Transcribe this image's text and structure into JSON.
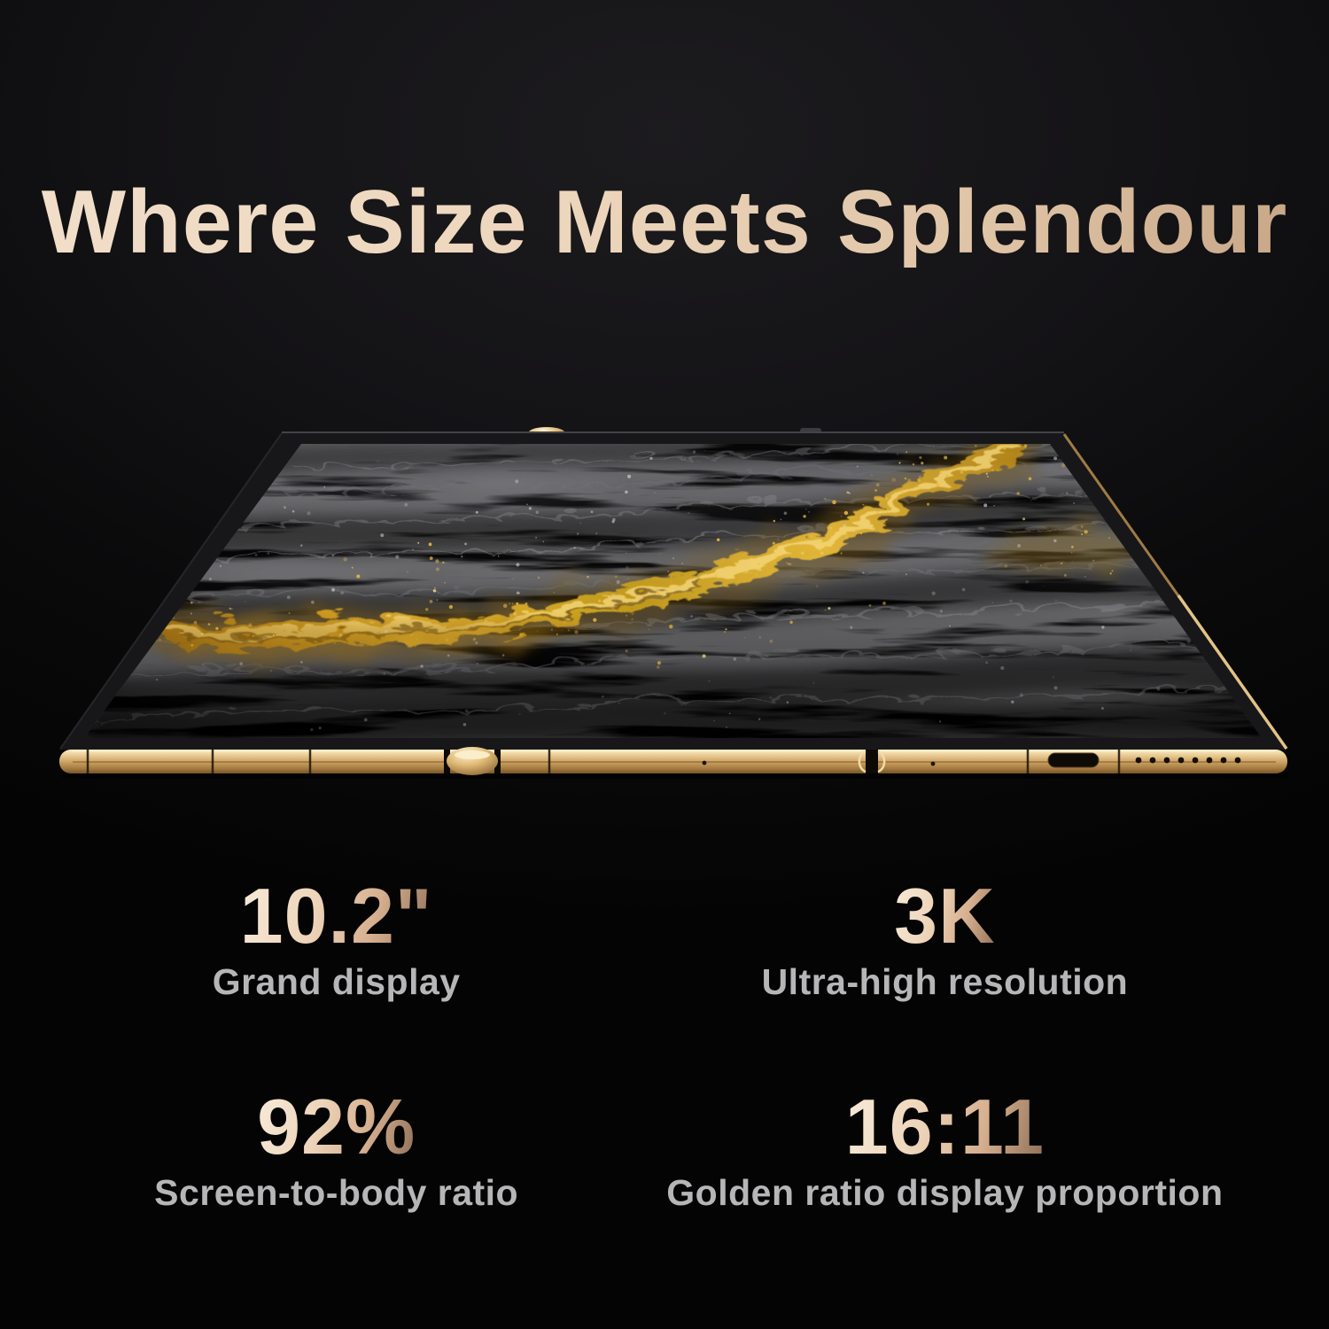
{
  "header": {
    "title": "Where Size Meets Splendour"
  },
  "device": {
    "description": "Unfolded foldable tablet in perspective with champagne-gold frame and hinge",
    "screen_art": "Black silk waves with a winding golden river and gold sparkle dust"
  },
  "specs": [
    {
      "value": "10.2\"",
      "label": "Grand display"
    },
    {
      "value": "3K",
      "label": "Ultra-high resolution"
    },
    {
      "value": "92%",
      "label": "Screen-to-body ratio"
    },
    {
      "value": "16:11",
      "label": "Golden ratio display proportion"
    }
  ],
  "colors": {
    "background": "#0b0b0c",
    "headline_gold": "#ecd6bc",
    "value_gold_light": "#f4e4d0",
    "value_gold_dark": "#9a7a62",
    "label_gray": "#b6b6b8",
    "frame_gold": "#d4ab6c",
    "river_gold": "#e0ab2a"
  }
}
